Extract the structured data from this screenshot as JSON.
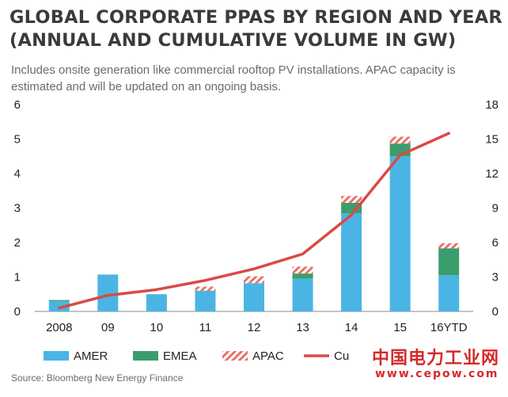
{
  "header": {
    "title_line1": "GLOBAL CORPORATE PPAS BY REGION AND YEAR",
    "title_line2": "(ANNUAL AND CUMULATIVE VOLUME IN GW)",
    "subtitle": "Includes onsite generation like commercial rooftop PV installations. APAC capacity is estimated and will be updated on an ongoing basis."
  },
  "footer": {
    "source": "Source:  Bloomberg New Energy Finance"
  },
  "watermark": {
    "name_cn": "中国电力工业网",
    "url": "www.cepow.com"
  },
  "colors": {
    "amer": "#4ab5e4",
    "emea": "#3c9d6c",
    "apac_stripe": "#e8736a",
    "cumulative": "#d94a46"
  },
  "chart_data": {
    "type": "bar",
    "categories": [
      "2008",
      "09",
      "10",
      "11",
      "12",
      "13",
      "14",
      "15",
      "16YTD"
    ],
    "series": [
      {
        "name": "AMER",
        "values": [
          0.3,
          1.07,
          0.5,
          0.6,
          0.82,
          0.95,
          2.85,
          4.5,
          1.05
        ]
      },
      {
        "name": "EMEA",
        "values": [
          0.03,
          0.0,
          0.0,
          0.0,
          0.0,
          0.15,
          0.3,
          0.37,
          0.78
        ]
      },
      {
        "name": "APAC",
        "values": [
          0.0,
          0.0,
          0.0,
          0.12,
          0.2,
          0.2,
          0.2,
          0.2,
          0.15
        ]
      },
      {
        "name": "Cumulative",
        "type": "line",
        "axis": "right",
        "values": [
          0.3,
          1.4,
          1.9,
          2.7,
          3.7,
          5.0,
          8.4,
          13.6,
          15.5
        ]
      }
    ],
    "ylim": [
      0,
      6
    ],
    "y_ticks": [
      0,
      1,
      2,
      3,
      4,
      5,
      6
    ],
    "y2lim": [
      0,
      18
    ],
    "y2_ticks": [
      0,
      3,
      6,
      9,
      12,
      15,
      18
    ],
    "legend": {
      "position": "bottom",
      "entries": [
        "AMER",
        "EMEA",
        "APAC",
        "Cumulative"
      ],
      "visible_text": [
        "AMER",
        "EMEA",
        "APAC",
        "Cu"
      ]
    },
    "grid": false
  }
}
